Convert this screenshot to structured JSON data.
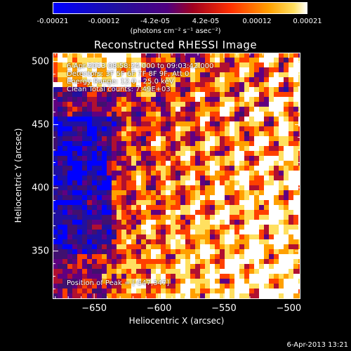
{
  "colorbar": {
    "tick_labels": [
      "-0.00021",
      "-0.00012",
      "-4.2e-05",
      "4.2e-05",
      "0.00012",
      "0.00021"
    ],
    "units": "(photons cm⁻² s⁻¹ asec⁻²)",
    "range": [
      -0.00021,
      0.00021
    ]
  },
  "chart_data": {
    "type": "heatmap",
    "title": "Reconstructed RHESSI Image",
    "xlabel": "Heliocentric X (arcsec)",
    "ylabel": "Heliocentric Y (arcsec)",
    "xlim": [
      -682,
      -491
    ],
    "ylim": [
      312,
      507
    ],
    "x_ticks": [
      -650,
      -600,
      -550,
      -500
    ],
    "y_ticks": [
      350,
      400,
      450,
      500
    ],
    "x_tick_labels": [
      "−650",
      "−600",
      "−550",
      "−500"
    ],
    "y_tick_labels": [
      "350",
      "400",
      "450",
      "500"
    ],
    "colormap": "red-temperature with blue negatives",
    "colors": [
      "#0000ff",
      "#2010a0",
      "#401070",
      "#600080",
      "#b01030",
      "#ff4000",
      "#ffa000",
      "#ffe060",
      "#ffffff"
    ],
    "peak_position": [
      -547,
      347
    ],
    "annotations": [
      "6-Apr-2013 08:58:24.000 to 09:03:42.000",
      "Detectors: 3F 5F 6F 7F 8F 9F, Att 0",
      "Energy Range: 12.0 - 25.0 keV",
      "Clean     Total counts: 7.49E+03",
      "Position of Peak = [-547,347]"
    ]
  },
  "footer": {
    "timestamp": "6-Apr-2013 13:21"
  }
}
